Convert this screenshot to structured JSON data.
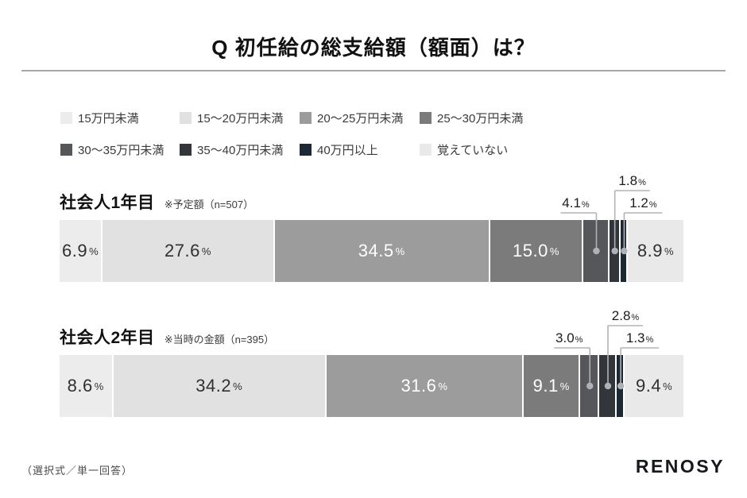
{
  "title": "Q 初任給の総支給額（額面）は？",
  "legend": {
    "items": [
      {
        "label": "15万円未満",
        "color": "#ececec"
      },
      {
        "label": "15〜20万円未満",
        "color": "#e1e1e1"
      },
      {
        "label": "20〜25万円未満",
        "color": "#9c9c9c"
      },
      {
        "label": "25〜30万円未満",
        "color": "#7b7b7b"
      },
      {
        "label": "30〜35万円未満",
        "color": "#55575a"
      },
      {
        "label": "35〜40万円未満",
        "color": "#323539"
      },
      {
        "label": "40万円以上",
        "color": "#1d2835"
      },
      {
        "label": "覚えていない",
        "color": "#e9e9e9"
      }
    ]
  },
  "chart_data": {
    "type": "bar",
    "variant": "stacked-horizontal",
    "unit": "%",
    "xlim": [
      0,
      100
    ],
    "grid": false,
    "legend_position": "top",
    "categories": [
      "15万円未満",
      "15〜20万円未満",
      "20〜25万円未満",
      "25〜30万円未満",
      "30〜35万円未満",
      "35〜40万円未満",
      "40万円以上",
      "覚えていない"
    ],
    "colors": [
      "#ececec",
      "#e1e1e1",
      "#9c9c9c",
      "#7b7b7b",
      "#55575a",
      "#323539",
      "#1d2835",
      "#e9e9e9"
    ],
    "label_text_colors": [
      "#303030",
      "#303030",
      "#ffffff",
      "#ffffff",
      null,
      null,
      null,
      "#303030"
    ],
    "callout_segments": [
      4,
      5,
      6
    ],
    "rows": [
      {
        "name": "社会人1年目",
        "note": "※予定額（n=507）",
        "values": [
          6.9,
          27.6,
          34.5,
          15.0,
          4.1,
          1.8,
          1.2,
          8.9
        ]
      },
      {
        "name": "社会人2年目",
        "note": "※当時の金額（n=395）",
        "values": [
          8.6,
          34.2,
          31.6,
          9.1,
          3.0,
          2.8,
          1.3,
          9.4
        ]
      }
    ]
  },
  "footer": {
    "note": "（選択式／単一回答）",
    "logo": "RENOSY"
  },
  "style": {
    "leader_line_color": "#b0b3b6",
    "dot_color": "#aeb1b5",
    "gap_color": "#ffffff"
  }
}
